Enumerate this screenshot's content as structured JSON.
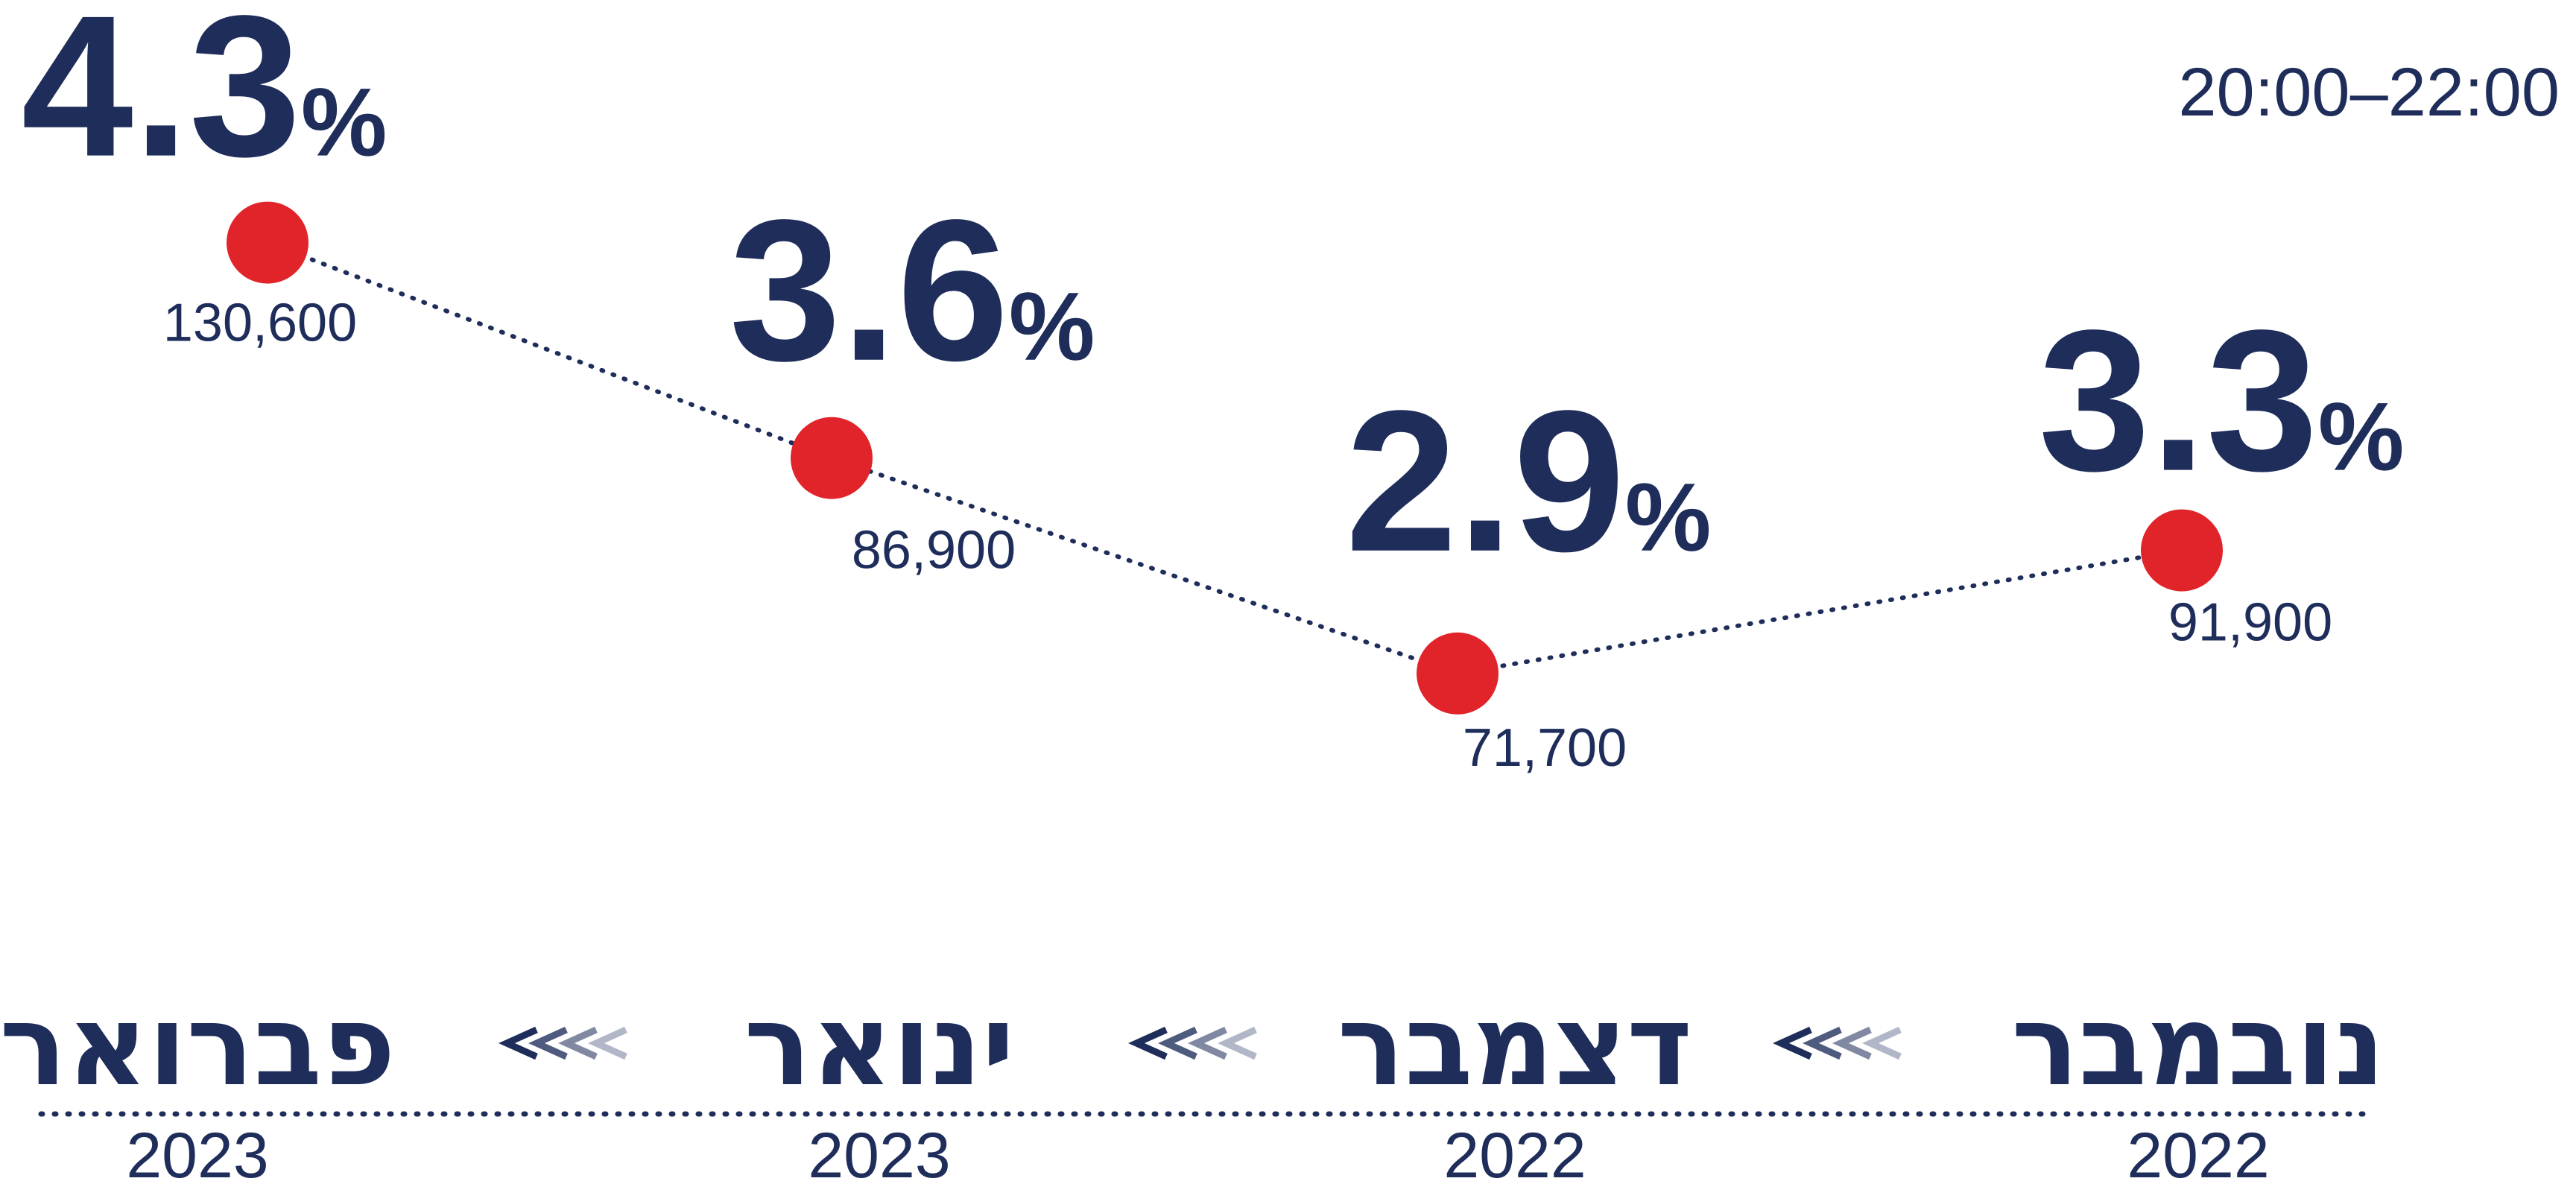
{
  "chart_data": {
    "type": "line",
    "subtitle": "20:00–22:00",
    "direction": "rtl",
    "categories": [
      "נובמבר",
      "דצמבר",
      "ינואר",
      "פברואר"
    ],
    "years": [
      2022,
      2022,
      2023,
      2023
    ],
    "values": [
      3.3,
      2.9,
      3.6,
      4.3
    ],
    "value_labels": [
      "3.3%",
      "2.9%",
      "3.6%",
      "4.3%"
    ],
    "counts": [
      91900,
      71700,
      86900,
      130600
    ],
    "count_labels": [
      "91,900",
      "71,700",
      "86,900",
      "130,600"
    ],
    "ylim": [
      2.5,
      4.5
    ],
    "color": "#e1232a",
    "line_style": "dotted"
  }
}
